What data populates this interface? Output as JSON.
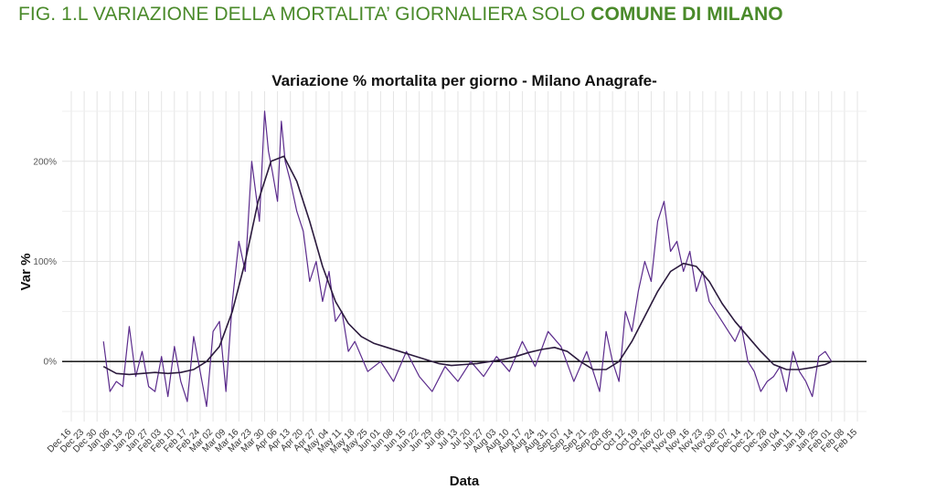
{
  "heading": {
    "prefix": "FIG. 1.L VARIAZIONE DELLA MORTALITA’ GIORNALIERA SOLO ",
    "bold": "COMUNE DI MILANO"
  },
  "colors": {
    "heading": "#4a8a2a",
    "series": "#5b2b8c",
    "smooth": "#2b1a3d",
    "zero_line": "#000000",
    "grid": "#e4e4e4"
  },
  "chart_data": {
    "type": "line",
    "title": "Variazione % mortalita per giorno - Milano Anagrafe-",
    "xlabel": "Data",
    "ylabel": "Var %",
    "ylim": [
      -60,
      270
    ],
    "yticks": [
      0,
      100,
      200
    ],
    "ytick_labels": [
      "0%",
      "100%",
      "200%"
    ],
    "xticks": [
      "Dec 16",
      "Dec 23",
      "Dec 30",
      "Jan 06",
      "Jan 13",
      "Jan 20",
      "Jan 27",
      "Feb 03",
      "Feb 10",
      "Feb 17",
      "Feb 24",
      "Mar 02",
      "Mar 09",
      "Mar 16",
      "Mar 23",
      "Mar 30",
      "Apr 06",
      "Apr 13",
      "Apr 20",
      "Apr 27",
      "May 04",
      "May 11",
      "May 18",
      "May 25",
      "Jun 01",
      "Jun 08",
      "Jun 15",
      "Jun 22",
      "Jun 29",
      "Jul 06",
      "Jul 13",
      "Jul 20",
      "Jul 27",
      "Aug 03",
      "Aug 10",
      "Aug 17",
      "Aug 24",
      "Aug 31",
      "Sep 07",
      "Sep 14",
      "Sep 21",
      "Sep 28",
      "Oct 05",
      "Oct 12",
      "Oct 19",
      "Oct 26",
      "Nov 02",
      "Nov 09",
      "Nov 16",
      "Nov 23",
      "Nov 30",
      "Dec 07",
      "Dec 14",
      "Dec 21",
      "Dec 28",
      "Jan 04",
      "Jan 11",
      "Jan 18",
      "Jan 25",
      "Feb 01",
      "Feb 08",
      "Feb 15"
    ],
    "grid": true,
    "hline": 0,
    "series": [
      {
        "style": "daily",
        "x_week_index": [
          2.5,
          3.0,
          3.5,
          4.0,
          4.5,
          5.0,
          5.5,
          6.0,
          6.5,
          7.0,
          7.5,
          8.0,
          8.5,
          9.0,
          9.5,
          10.0,
          10.5,
          11.0,
          11.5,
          12.0,
          12.5,
          13.0,
          13.5,
          14.0,
          14.3,
          14.6,
          15.0,
          15.3,
          15.6,
          16.0,
          16.3,
          16.6,
          17.0,
          17.5,
          18.0,
          18.5,
          19.0,
          19.5,
          20.0,
          20.5,
          21.0,
          21.5,
          22.0,
          23.0,
          24.0,
          25.0,
          26.0,
          27.0,
          28.0,
          29.0,
          30.0,
          31.0,
          32.0,
          33.0,
          34.0,
          35.0,
          36.0,
          37.0,
          38.0,
          39.0,
          40.0,
          41.0,
          41.5,
          42.0,
          42.5,
          43.0,
          43.5,
          44.0,
          44.5,
          45.0,
          45.5,
          46.0,
          46.5,
          47.0,
          47.5,
          48.0,
          48.5,
          49.0,
          49.5,
          50.0,
          50.5,
          51.0,
          51.5,
          52.0,
          52.5,
          53.0,
          53.5,
          54.0,
          54.5,
          55.0,
          55.5,
          56.0,
          56.5,
          57.0,
          57.5,
          58.0,
          58.5,
          59.0
        ],
        "y": [
          20,
          -30,
          -20,
          -25,
          35,
          -15,
          10,
          -25,
          -30,
          5,
          -35,
          15,
          -20,
          -40,
          25,
          -10,
          -45,
          30,
          40,
          -30,
          60,
          120,
          90,
          200,
          170,
          140,
          250,
          210,
          190,
          160,
          240,
          200,
          180,
          150,
          130,
          80,
          100,
          60,
          90,
          40,
          50,
          10,
          20,
          -10,
          0,
          -20,
          10,
          -15,
          -30,
          -5,
          -20,
          0,
          -15,
          5,
          -10,
          20,
          -5,
          30,
          15,
          -20,
          10,
          -30,
          30,
          0,
          -20,
          50,
          30,
          70,
          100,
          80,
          140,
          160,
          110,
          120,
          90,
          110,
          70,
          90,
          60,
          50,
          40,
          30,
          20,
          35,
          0,
          -10,
          -30,
          -20,
          -15,
          -5,
          -30,
          10,
          -10,
          -20,
          -35,
          5,
          10,
          0
        ]
      },
      {
        "style": "smoothed",
        "x_week_index": [
          2.5,
          3.5,
          4.5,
          5.5,
          6.5,
          7.5,
          8.5,
          9.5,
          10.5,
          11.5,
          12.5,
          13.5,
          14.5,
          15.5,
          16.5,
          17.5,
          18.5,
          19.5,
          20.5,
          21.5,
          22.5,
          23.5,
          24.5,
          25.5,
          26.5,
          27.5,
          28.5,
          29.5,
          30.5,
          31.5,
          32.5,
          33.5,
          34.5,
          35.5,
          36.5,
          37.5,
          38.5,
          39.5,
          40.5,
          41.5,
          42.5,
          43.5,
          44.5,
          45.5,
          46.5,
          47.5,
          48.5,
          49.5,
          50.5,
          51.5,
          52.5,
          53.5,
          54.5,
          55.5,
          56.5,
          57.5,
          58.5,
          59.0
        ],
        "y": [
          -5,
          -12,
          -13,
          -12,
          -11,
          -12,
          -11,
          -8,
          0,
          15,
          50,
          100,
          160,
          200,
          205,
          180,
          140,
          95,
          60,
          38,
          25,
          18,
          14,
          10,
          6,
          2,
          -2,
          -4,
          -3,
          -2,
          0,
          2,
          5,
          9,
          12,
          14,
          10,
          0,
          -8,
          -8,
          0,
          20,
          45,
          70,
          90,
          98,
          95,
          80,
          58,
          40,
          25,
          10,
          -3,
          -8,
          -8,
          -6,
          -3,
          0
        ]
      }
    ]
  }
}
